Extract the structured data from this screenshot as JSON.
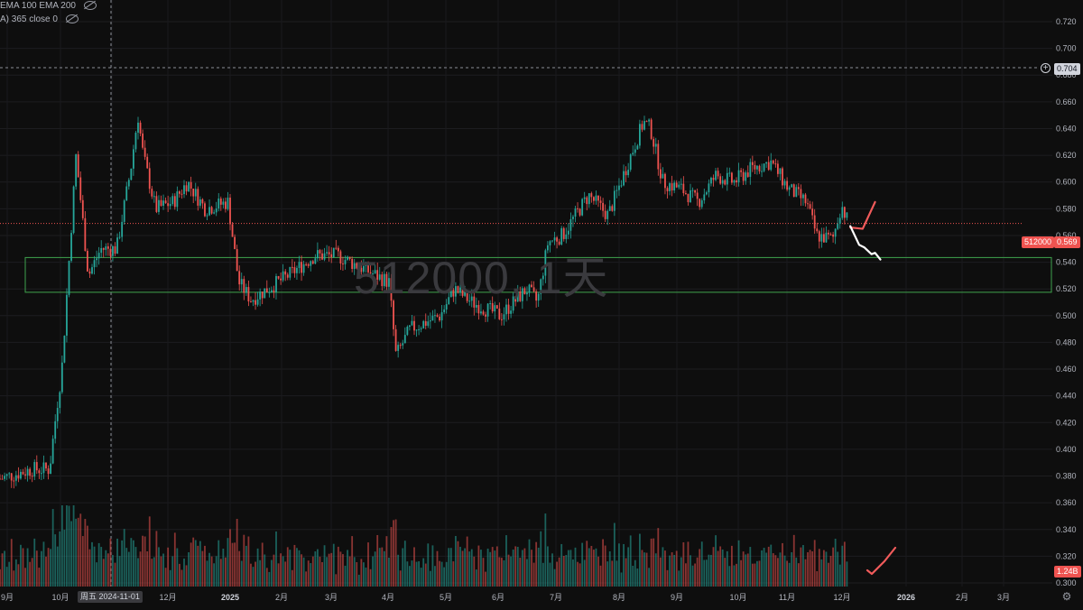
{
  "indicators": [
    {
      "label": "EMA 100 EMA 200"
    },
    {
      "label": "A) 365 close 0"
    }
  ],
  "watermark": "512000, 1天",
  "symbol_tag": "512000",
  "crosshair": {
    "date_label": "周五 2024-11-01",
    "price_label": "0.704"
  },
  "last_price": "0.569",
  "volume_label": "1.24B",
  "colors": {
    "up": "#26a69a",
    "down": "#ef5350",
    "bg": "#0e0e0e",
    "zone": "#3fa34d",
    "forecast_up": "#f15b5b",
    "forecast_down": "#ffffff"
  },
  "icons": [
    "eye-icon",
    "plus-circle-icon",
    "gear-icon"
  ],
  "chart_data": {
    "type": "candlestick",
    "y_axis": {
      "ticks": [
        "0.720",
        "0.700",
        "0.680",
        "0.660",
        "0.640",
        "0.620",
        "0.600",
        "0.580",
        "0.560",
        "0.540",
        "0.520",
        "0.500",
        "0.480",
        "0.460",
        "0.440",
        "0.420",
        "0.400",
        "0.380",
        "0.360",
        "0.340",
        "0.320",
        "0.300"
      ],
      "ylim": [
        0.296,
        0.733
      ]
    },
    "x_axis": {
      "ticks": [
        "9月",
        "10月",
        "11月",
        "12月",
        "2025",
        "2月",
        "3月",
        "4月",
        "5月",
        "6月",
        "7月",
        "8月",
        "9月",
        "10月",
        "11月",
        "12月",
        "2026",
        "2月",
        "3月"
      ]
    },
    "support_zone": [
      0.5175,
      0.5435
    ],
    "last_price": 0.569,
    "price_path": [
      [
        "2024-08-26",
        0.378
      ],
      [
        "2024-09-13",
        0.385
      ],
      [
        "2024-09-23",
        0.385
      ],
      [
        "2024-09-27",
        0.43
      ],
      [
        "2024-09-30",
        0.46
      ],
      [
        "2024-10-08",
        0.62
      ],
      [
        "2024-10-15",
        0.53
      ],
      [
        "2024-10-22",
        0.55
      ],
      [
        "2024-10-31",
        0.55
      ],
      [
        "2024-11-08",
        0.61
      ],
      [
        "2024-11-12",
        0.65
      ],
      [
        "2024-11-15",
        0.62
      ],
      [
        "2024-11-22",
        0.58
      ],
      [
        "2024-12-02",
        0.585
      ],
      [
        "2024-12-10",
        0.6
      ],
      [
        "2024-12-20",
        0.58
      ],
      [
        "2025-01-02",
        0.585
      ],
      [
        "2025-01-08",
        0.525
      ],
      [
        "2025-01-15",
        0.512
      ],
      [
        "2025-02-05",
        0.53
      ],
      [
        "2025-02-20",
        0.545
      ],
      [
        "2025-03-05",
        0.545
      ],
      [
        "2025-03-20",
        0.535
      ],
      [
        "2025-04-03",
        0.525
      ],
      [
        "2025-04-07",
        0.47
      ],
      [
        "2025-04-15",
        0.49
      ],
      [
        "2025-05-02",
        0.5
      ],
      [
        "2025-05-10",
        0.52
      ],
      [
        "2025-05-20",
        0.51
      ],
      [
        "2025-06-05",
        0.5
      ],
      [
        "2025-06-20",
        0.52
      ],
      [
        "2025-06-26",
        0.51
      ],
      [
        "2025-07-02",
        0.555
      ],
      [
        "2025-07-10",
        0.56
      ],
      [
        "2025-07-25",
        0.59
      ],
      [
        "2025-08-05",
        0.575
      ],
      [
        "2025-08-15",
        0.61
      ],
      [
        "2025-08-25",
        0.645
      ],
      [
        "2025-08-29",
        0.64
      ],
      [
        "2025-09-05",
        0.6
      ],
      [
        "2025-09-15",
        0.595
      ],
      [
        "2025-09-25",
        0.585
      ],
      [
        "2025-10-05",
        0.605
      ],
      [
        "2025-10-15",
        0.6
      ],
      [
        "2025-10-25",
        0.61
      ],
      [
        "2025-11-05",
        0.615
      ],
      [
        "2025-11-15",
        0.595
      ],
      [
        "2025-11-25",
        0.585
      ],
      [
        "2025-12-01",
        0.56
      ],
      [
        "2025-12-10",
        0.557
      ],
      [
        "2025-12-15",
        0.583
      ],
      [
        "2025-12-19",
        0.569
      ]
    ],
    "volume": {
      "label": "1.24B"
    },
    "forecast": {
      "bullish_path": [
        [
          "2025-12-20",
          0.566
        ],
        [
          "2025-12-27",
          0.565
        ],
        [
          "2026-01-03",
          0.585
        ]
      ],
      "bearish_path": [
        [
          "2025-12-20",
          0.567
        ],
        [
          "2025-12-25",
          0.553
        ],
        [
          "2025-12-28",
          0.551
        ],
        [
          "2026-01-01",
          0.546
        ],
        [
          "2026-01-03",
          0.547
        ],
        [
          "2026-01-06",
          0.542
        ]
      ]
    }
  }
}
